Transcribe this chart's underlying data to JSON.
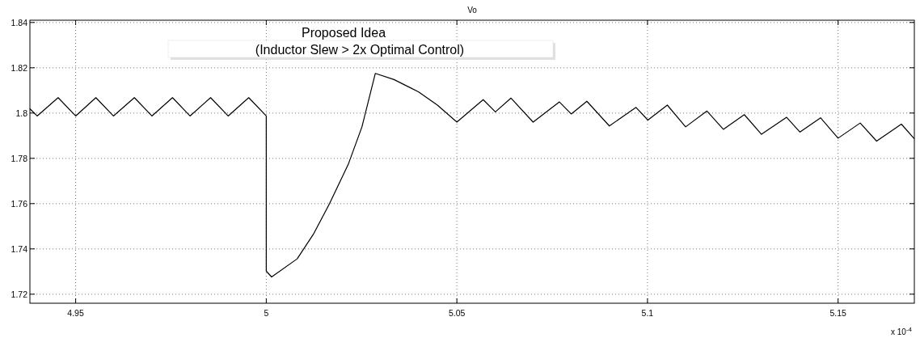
{
  "chart_data": {
    "type": "line",
    "title": "Vo",
    "annotations": [
      "Proposed Idea",
      "(Inductor Slew > 2x Optimal Control)",
      "x 10$^{-4}$"
    ],
    "x": [
      4.938,
      4.9399,
      4.9454,
      4.95,
      4.9553,
      4.9599,
      4.9654,
      4.97,
      4.9754,
      4.98,
      4.9854,
      4.99,
      4.9954,
      5.0,
      5.0,
      5.0014,
      5.0081,
      5.0123,
      5.0166,
      5.0215,
      5.0251,
      5.0286,
      5.0335,
      5.0399,
      5.0449,
      5.05,
      5.0569,
      5.0601,
      5.0642,
      5.07,
      5.0769,
      5.08,
      5.0841,
      5.09,
      5.097,
      5.1001,
      5.1052,
      5.11,
      5.1156,
      5.1199,
      5.1254,
      5.1299,
      5.1365,
      5.14,
      5.1454,
      5.15,
      5.1558,
      5.1601,
      5.1666,
      5.17
    ],
    "series": [
      {
        "color": "#000000",
        "values": [
          1.8019,
          1.7987,
          1.8068,
          1.7987,
          1.8068,
          1.7987,
          1.8068,
          1.7987,
          1.8068,
          1.7987,
          1.8068,
          1.7987,
          1.8068,
          1.7987,
          1.7302,
          1.7276,
          1.7356,
          1.7463,
          1.76,
          1.7773,
          1.7939,
          1.8175,
          1.8148,
          1.8094,
          1.8035,
          1.796,
          1.8059,
          1.8005,
          1.8066,
          1.796,
          1.8049,
          1.7996,
          1.8052,
          1.7943,
          1.8025,
          1.7969,
          1.8035,
          1.7939,
          1.8009,
          1.7928,
          1.7993,
          1.7906,
          1.7981,
          1.7916,
          1.7979,
          1.7889,
          1.7956,
          1.7876,
          1.7951,
          1.7886
        ]
      }
    ],
    "xlim": [
      4.938,
      5.17
    ],
    "xticks": [
      4.95,
      5,
      5.05,
      5.1,
      5.15
    ],
    "ylim": [
      1.716,
      1.841
    ],
    "yticks": [
      1.72,
      1.74,
      1.76,
      1.78,
      1.8,
      1.82,
      1.84
    ],
    "grid": true,
    "marker": "none",
    "line_style": "solid"
  }
}
